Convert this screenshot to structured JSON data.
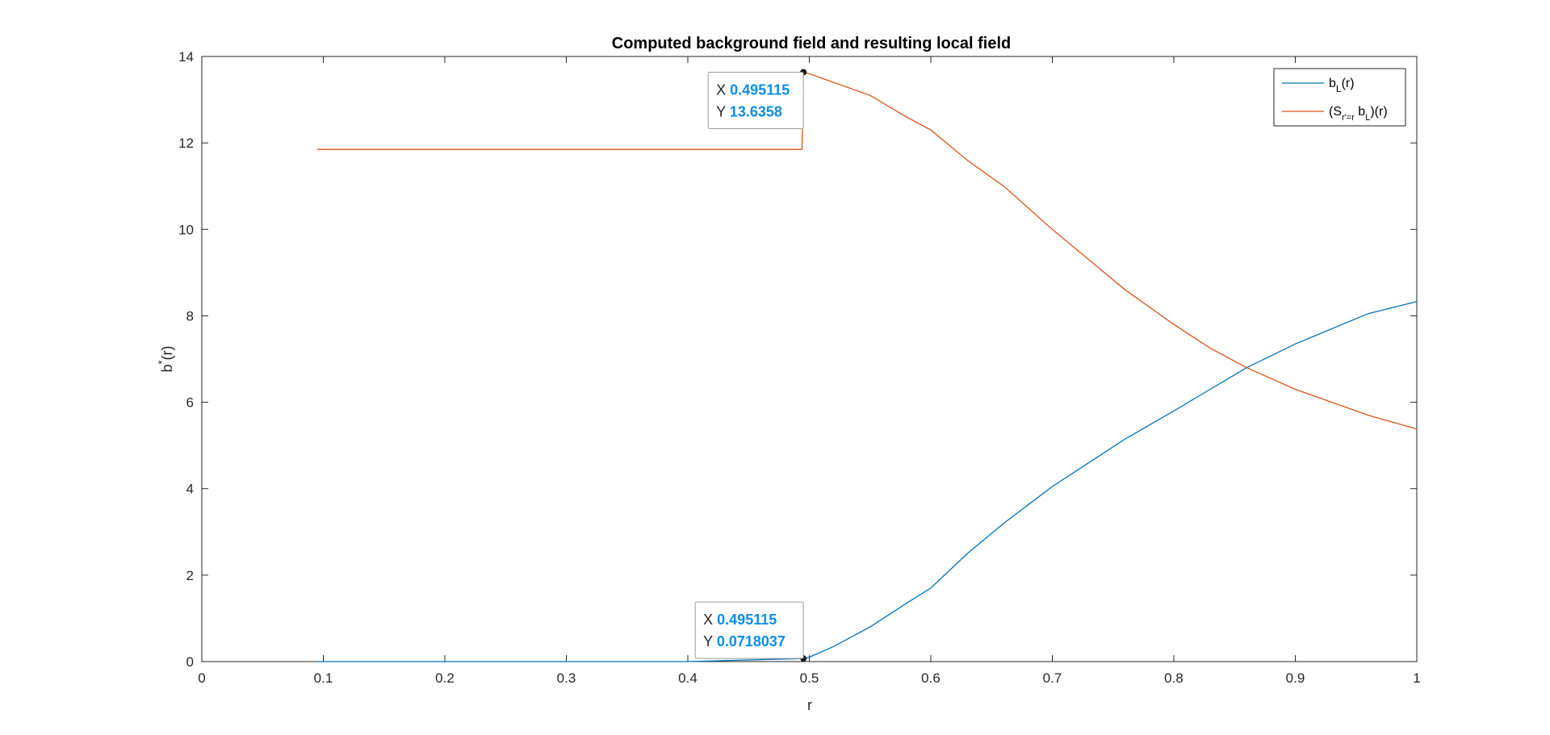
{
  "chart_data": {
    "type": "line",
    "title": "Computed background field and resulting local field",
    "xlabel": "r",
    "ylabel": "b*(r)",
    "xlim": [
      0,
      1
    ],
    "ylim": [
      0,
      14
    ],
    "xticks": [
      0,
      0.1,
      0.2,
      0.3,
      0.4,
      0.5,
      0.6,
      0.7,
      0.8,
      0.9,
      1
    ],
    "yticks": [
      0,
      2,
      4,
      6,
      8,
      10,
      12,
      14
    ],
    "xtick_labels": [
      "0",
      "0.1",
      "0.2",
      "0.3",
      "0.4",
      "0.5",
      "0.6",
      "0.7",
      "0.8",
      "0.9",
      "1"
    ],
    "ytick_labels": [
      "0",
      "2",
      "4",
      "6",
      "8",
      "10",
      "12",
      "14"
    ],
    "grid": false,
    "legend_position": "top-right",
    "series": [
      {
        "name": "b_L(r)",
        "legend_parts": {
          "base": "b",
          "sub": "L",
          "rest": "(r)"
        },
        "color": "#0072bd",
        "x": [
          0.095,
          0.2,
          0.3,
          0.4,
          0.495115,
          0.5,
          0.52,
          0.55,
          0.58,
          0.6,
          0.63,
          0.66,
          0.7,
          0.73,
          0.76,
          0.8,
          0.83,
          0.86,
          0.9,
          0.93,
          0.96,
          1.0
        ],
        "y": [
          0,
          0,
          0,
          0,
          0.0718037,
          0.1,
          0.35,
          0.8,
          1.35,
          1.7,
          2.5,
          3.2,
          4.05,
          4.6,
          5.15,
          5.8,
          6.3,
          6.8,
          7.35,
          7.7,
          8.05,
          8.33
        ]
      },
      {
        "name": "(S_{r'=r} b_L)(r)",
        "legend_parts": {
          "p1": "(S",
          "sub1": "r'=r",
          "p2": " b",
          "sub2": "L",
          "p3": ")(r)"
        },
        "color": "#d95319",
        "x": [
          0.095,
          0.2,
          0.3,
          0.4,
          0.494,
          0.495115,
          0.5,
          0.52,
          0.55,
          0.58,
          0.6,
          0.63,
          0.66,
          0.7,
          0.73,
          0.76,
          0.8,
          0.83,
          0.86,
          0.9,
          0.93,
          0.96,
          1.0
        ],
        "y": [
          11.85,
          11.85,
          11.85,
          11.85,
          11.85,
          13.6358,
          13.6,
          13.4,
          13.1,
          12.6,
          12.3,
          11.6,
          11.0,
          10.0,
          9.3,
          8.6,
          7.8,
          7.25,
          6.8,
          6.3,
          6.0,
          5.7,
          5.38
        ]
      }
    ],
    "annotations": [
      {
        "series": 1,
        "x": 0.495115,
        "y": 13.6358,
        "x_label": "X",
        "y_label": "Y",
        "x_text": "0.495115",
        "y_text": "13.6358"
      },
      {
        "series": 0,
        "x": 0.495115,
        "y": 0.0718037,
        "x_label": "X",
        "y_label": "Y",
        "x_text": "0.495115",
        "y_text": "0.0718037"
      }
    ]
  }
}
